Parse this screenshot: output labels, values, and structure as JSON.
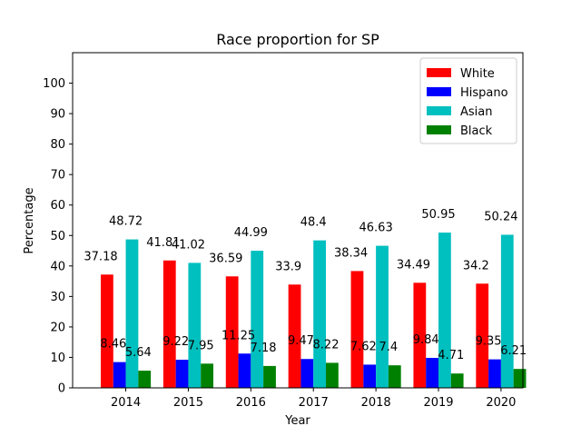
{
  "chart_data": {
    "type": "bar",
    "title": "Race proportion for SP",
    "xlabel": "Year",
    "ylabel": "Percentage",
    "categories": [
      "2014",
      "2015",
      "2016",
      "2017",
      "2018",
      "2019",
      "2020"
    ],
    "series": [
      {
        "name": "White",
        "color": "#ff0000",
        "values": [
          37.18,
          41.81,
          36.59,
          33.9,
          38.34,
          34.49,
          34.2
        ],
        "labels": [
          "37.18",
          "41.81",
          "36.59",
          "33.9",
          "38.34",
          "34.49",
          "34.2"
        ]
      },
      {
        "name": "Hispano",
        "color": "#0000ff",
        "values": [
          8.46,
          9.22,
          11.25,
          9.47,
          7.62,
          9.84,
          9.35
        ],
        "labels": [
          "8.46",
          "9.22",
          "11.25",
          "9.47",
          "7.62",
          "9.84",
          "9.35"
        ]
      },
      {
        "name": "Asian",
        "color": "#00bfbf",
        "values": [
          48.72,
          41.02,
          44.99,
          48.4,
          46.63,
          50.95,
          50.24
        ],
        "labels": [
          "48.72",
          "41.02",
          "44.99",
          "48.4",
          "46.63",
          "50.95",
          "50.24"
        ]
      },
      {
        "name": "Black",
        "color": "#008000",
        "values": [
          5.64,
          7.95,
          7.18,
          8.22,
          7.4,
          4.71,
          6.21
        ],
        "labels": [
          "5.64",
          "7.95",
          "7.18",
          "8.22",
          "7.4",
          "4.71",
          "6.21"
        ]
      }
    ],
    "ylim": [
      0,
      110
    ],
    "yticks": [
      0,
      10,
      20,
      30,
      40,
      50,
      60,
      70,
      80,
      90,
      100
    ],
    "ytick_labels": [
      "0",
      "10",
      "20",
      "30",
      "40",
      "50",
      "60",
      "70",
      "80",
      "90",
      "100"
    ],
    "grid": false,
    "legend_position": "top-right"
  }
}
